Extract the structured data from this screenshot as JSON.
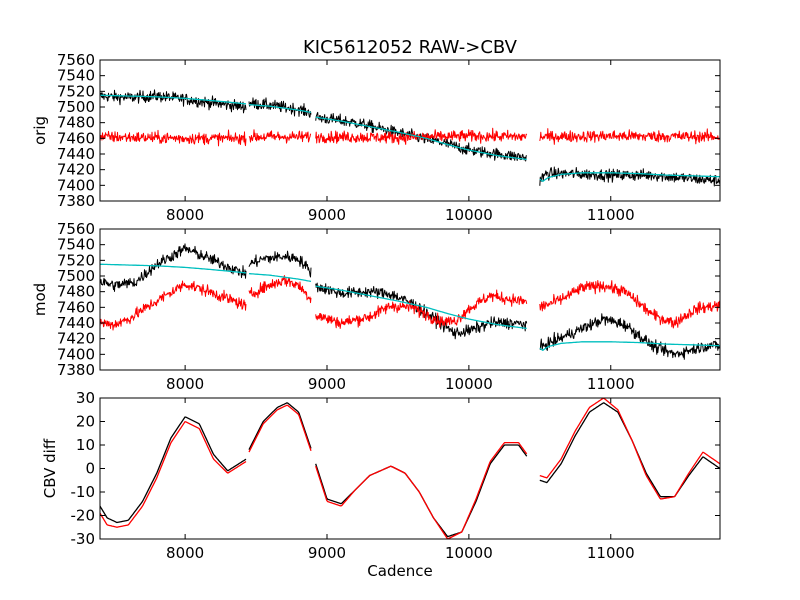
{
  "figure": {
    "title": "KIC5612052 RAW->CBV"
  },
  "colors": {
    "black": "#000000",
    "red": "#ff0000",
    "cyan": "#00bfbf",
    "background": "#ffffff"
  },
  "chart_data": [
    {
      "type": "line",
      "panel": "top",
      "ylabel": "orig",
      "xlabel": "",
      "xlim": [
        7400,
        11770
      ],
      "ylim": [
        7380,
        7560
      ],
      "xticks": [
        8000,
        9000,
        10000,
        11000
      ],
      "yticks": [
        7380,
        7400,
        7420,
        7440,
        7460,
        7480,
        7500,
        7520,
        7540,
        7560
      ],
      "gaps": [
        [
          8430,
          8450
        ],
        [
          8890,
          8920
        ],
        [
          10410,
          10500
        ]
      ],
      "series": [
        {
          "color": "black",
          "noise": 7,
          "x": [
            7400,
            7600,
            7800,
            8000,
            8200,
            8430,
            8450,
            8600,
            8800,
            8890,
            8920,
            9200,
            9500,
            9800,
            10000,
            10200,
            10410,
            10500,
            10550,
            10700,
            11000,
            11300,
            11600,
            11770
          ],
          "values": [
            7514,
            7512,
            7514,
            7510,
            7505,
            7500,
            7505,
            7502,
            7497,
            7492,
            7487,
            7480,
            7467,
            7455,
            7445,
            7440,
            7435,
            7407,
            7415,
            7415,
            7413,
            7413,
            7408,
            7406
          ]
        },
        {
          "color": "red",
          "noise": 7,
          "x": [
            7400,
            8000,
            8430,
            8450,
            8890,
            8920,
            9500,
            10000,
            10410,
            10500,
            11000,
            11770
          ],
          "values": [
            7462,
            7460,
            7460,
            7462,
            7462,
            7462,
            7461,
            7463,
            7462,
            7462,
            7463,
            7462
          ]
        },
        {
          "color": "cyan",
          "noise": 0,
          "x": [
            7400,
            7600,
            7800,
            8000,
            8200,
            8430,
            8450,
            8600,
            8800,
            8890,
            8920,
            9100,
            9300,
            9500,
            9700,
            9850,
            10000,
            10200,
            10410,
            10500,
            10520,
            10560,
            10650,
            10800,
            11000,
            11200,
            11400,
            11600,
            11770
          ],
          "values": [
            7515,
            7514,
            7513,
            7511,
            7508,
            7504,
            7503,
            7501,
            7496,
            7493,
            7487,
            7482,
            7475,
            7468,
            7460,
            7452,
            7445,
            7438,
            7433,
            7408,
            7405,
            7410,
            7414,
            7416,
            7416,
            7415,
            7413,
            7412,
            7411
          ]
        }
      ]
    },
    {
      "type": "line",
      "panel": "middle",
      "ylabel": "mod",
      "xlabel": "",
      "xlim": [
        7400,
        11770
      ],
      "ylim": [
        7380,
        7560
      ],
      "xticks": [
        8000,
        9000,
        10000,
        11000
      ],
      "yticks": [
        7380,
        7400,
        7420,
        7440,
        7460,
        7480,
        7500,
        7520,
        7540,
        7560
      ],
      "gaps": [
        [
          8430,
          8450
        ],
        [
          8890,
          8920
        ],
        [
          10410,
          10500
        ]
      ],
      "series": [
        {
          "color": "black",
          "noise": 7,
          "x": [
            7400,
            7500,
            7650,
            7800,
            8000,
            8200,
            8430,
            8450,
            8550,
            8700,
            8800,
            8890,
            8920,
            9100,
            9300,
            9450,
            9600,
            9800,
            9900,
            10000,
            10150,
            10300,
            10410,
            10500,
            10550,
            10700,
            10850,
            10950,
            11100,
            11300,
            11450,
            11550,
            11700,
            11770
          ],
          "values": [
            7493,
            7488,
            7492,
            7515,
            7535,
            7520,
            7502,
            7515,
            7522,
            7525,
            7522,
            7505,
            7487,
            7478,
            7480,
            7477,
            7465,
            7440,
            7427,
            7430,
            7440,
            7440,
            7438,
            7408,
            7413,
            7425,
            7437,
            7445,
            7438,
            7410,
            7400,
            7405,
            7412,
            7410
          ]
        },
        {
          "color": "red",
          "noise": 7,
          "x": [
            7400,
            7500,
            7600,
            7800,
            8000,
            8200,
            8430,
            8450,
            8550,
            8700,
            8800,
            8890,
            8920,
            9100,
            9300,
            9450,
            9600,
            9800,
            9900,
            10000,
            10150,
            10300,
            10410,
            10500,
            10650,
            10800,
            10950,
            11100,
            11300,
            11450,
            11600,
            11770
          ],
          "values": [
            7440,
            7438,
            7445,
            7468,
            7490,
            7478,
            7462,
            7475,
            7485,
            7495,
            7488,
            7470,
            7450,
            7440,
            7448,
            7462,
            7460,
            7442,
            7442,
            7458,
            7475,
            7470,
            7467,
            7460,
            7470,
            7485,
            7488,
            7480,
            7450,
            7440,
            7458,
            7463
          ]
        },
        {
          "color": "cyan",
          "noise": 0,
          "x": [
            7400,
            7600,
            7800,
            8000,
            8200,
            8430,
            8450,
            8600,
            8800,
            8890,
            8920,
            9100,
            9300,
            9500,
            9700,
            9850,
            10000,
            10200,
            10410,
            10500,
            10520,
            10560,
            10650,
            10800,
            11000,
            11200,
            11400,
            11600,
            11770
          ],
          "values": [
            7515,
            7514,
            7513,
            7511,
            7508,
            7504,
            7503,
            7501,
            7496,
            7493,
            7487,
            7482,
            7475,
            7468,
            7460,
            7452,
            7445,
            7438,
            7433,
            7408,
            7405,
            7410,
            7414,
            7416,
            7416,
            7415,
            7413,
            7412,
            7411
          ]
        }
      ]
    },
    {
      "type": "line",
      "panel": "bottom",
      "ylabel": "CBV diff",
      "xlabel": "Cadence",
      "xlim": [
        7400,
        11770
      ],
      "ylim": [
        -30,
        30
      ],
      "xticks": [
        8000,
        9000,
        10000,
        11000
      ],
      "yticks": [
        -30,
        -20,
        -10,
        0,
        10,
        20,
        30
      ],
      "gaps": [
        [
          8430,
          8450
        ],
        [
          8890,
          8920
        ],
        [
          10410,
          10500
        ]
      ],
      "series": [
        {
          "color": "black",
          "noise": 0,
          "x": [
            7400,
            7450,
            7520,
            7600,
            7700,
            7800,
            7900,
            8000,
            8100,
            8200,
            8300,
            8430,
            8450,
            8550,
            8650,
            8720,
            8800,
            8890,
            8920,
            9000,
            9100,
            9200,
            9300,
            9450,
            9550,
            9650,
            9750,
            9850,
            9950,
            10050,
            10150,
            10250,
            10350,
            10410,
            10500,
            10550,
            10650,
            10750,
            10850,
            10950,
            11050,
            11150,
            11250,
            11350,
            11450,
            11550,
            11650,
            11770
          ],
          "values": [
            -16,
            -21,
            -23,
            -22,
            -14,
            -2,
            13,
            22,
            19,
            6,
            -1,
            4,
            8,
            20,
            26,
            28,
            24,
            8,
            2,
            -13,
            -15,
            -9,
            -3,
            1,
            -2,
            -10,
            -21,
            -29,
            -27,
            -14,
            2,
            10,
            10,
            5,
            -5,
            -6,
            2,
            14,
            24,
            28,
            24,
            12,
            -2,
            -12,
            -12,
            -3,
            5,
            0
          ]
        },
        {
          "color": "red",
          "noise": 0,
          "x": [
            7400,
            7450,
            7520,
            7600,
            7700,
            7800,
            7900,
            8000,
            8100,
            8200,
            8300,
            8430,
            8450,
            8550,
            8650,
            8720,
            8800,
            8890,
            8920,
            9000,
            9100,
            9200,
            9300,
            9450,
            9550,
            9650,
            9750,
            9850,
            9950,
            10050,
            10150,
            10250,
            10350,
            10410,
            10500,
            10550,
            10650,
            10750,
            10850,
            10950,
            11050,
            11150,
            11250,
            11350,
            11450,
            11550,
            11650,
            11770
          ],
          "values": [
            -19,
            -24,
            -25,
            -24,
            -16,
            -4,
            11,
            20,
            17,
            4,
            -2,
            3,
            7,
            19,
            25,
            27,
            23,
            7,
            1,
            -14,
            -16,
            -9,
            -3,
            1,
            -2,
            -10,
            -21,
            -30,
            -27,
            -13,
            3,
            11,
            11,
            6,
            -3,
            -4,
            4,
            16,
            26,
            30,
            25,
            12,
            -3,
            -13,
            -12,
            -2,
            7,
            2
          ]
        }
      ]
    }
  ]
}
